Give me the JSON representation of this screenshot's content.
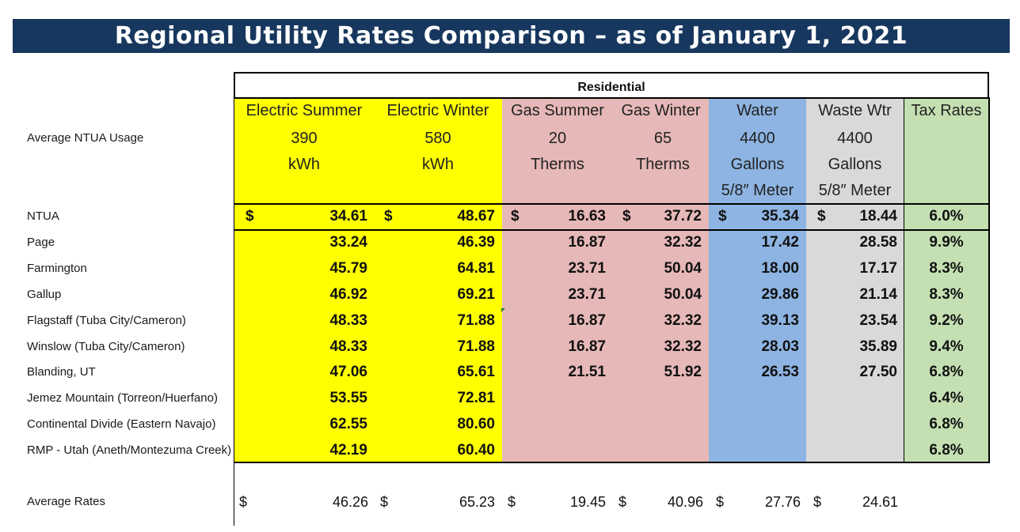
{
  "title": "Regional Utility Rates Comparison – as of January 1, 2021",
  "section": "Residential",
  "colors": {
    "banner": "#17375e",
    "electric": "#ffff00",
    "gas": "#e6b8b7",
    "water": "#8db4e2",
    "waste": "#d9d9d9",
    "tax": "#c4e0b2"
  },
  "columns": [
    {
      "header": "Electric Summer",
      "usage": [
        "390",
        "kWh",
        ""
      ]
    },
    {
      "header": "Electric Winter",
      "usage": [
        "580",
        "kWh",
        ""
      ]
    },
    {
      "header": "Gas Summer",
      "usage": [
        "20",
        "Therms",
        ""
      ]
    },
    {
      "header": "Gas Winter",
      "usage": [
        "65",
        "Therms",
        ""
      ]
    },
    {
      "header": "Water",
      "usage": [
        "4400",
        "Gallons",
        "5/8″ Meter"
      ]
    },
    {
      "header": "Waste Wtr",
      "usage": [
        "4400",
        "Gallons",
        "5/8″ Meter"
      ]
    },
    {
      "header": "Tax Rates",
      "usage": [
        "",
        "",
        ""
      ]
    }
  ],
  "usage_label": "Average NTUA Usage",
  "currency": "$",
  "rows": [
    {
      "name": "NTUA",
      "values": [
        "34.61",
        "48.67",
        "16.63",
        "37.72",
        "35.34",
        "18.44"
      ],
      "tax": "6.0%"
    },
    {
      "name": "Page",
      "values": [
        "33.24",
        "46.39",
        "16.87",
        "32.32",
        "17.42",
        "28.58"
      ],
      "tax": "9.9%"
    },
    {
      "name": "Farmington",
      "values": [
        "45.79",
        "64.81",
        "23.71",
        "50.04",
        "18.00",
        "17.17"
      ],
      "tax": "8.3%"
    },
    {
      "name": "Gallup",
      "values": [
        "46.92",
        "69.21",
        "23.71",
        "50.04",
        "29.86",
        "21.14"
      ],
      "tax": "8.3%"
    },
    {
      "name": "Flagstaff (Tuba City/Cameron)",
      "values": [
        "48.33",
        "71.88",
        "16.87",
        "32.32",
        "39.13",
        "23.54"
      ],
      "tax": "9.2%"
    },
    {
      "name": "Winslow (Tuba City/Cameron)",
      "values": [
        "48.33",
        "71.88",
        "16.87",
        "32.32",
        "28.03",
        "35.89"
      ],
      "tax": "9.4%"
    },
    {
      "name": "Blanding, UT",
      "values": [
        "47.06",
        "65.61",
        "21.51",
        "51.92",
        "26.53",
        "27.50"
      ],
      "tax": "6.8%"
    },
    {
      "name": "Jemez Mountain (Torreon/Huerfano)",
      "values": [
        "53.55",
        "72.81",
        "",
        "",
        "",
        ""
      ],
      "tax": "6.4%"
    },
    {
      "name": "Continental Divide (Eastern Navajo)",
      "values": [
        "62.55",
        "80.60",
        "",
        "",
        "",
        ""
      ],
      "tax": "6.8%"
    },
    {
      "name": "RMP - Utah (Aneth/Montezuma Creek)",
      "values": [
        "42.19",
        "60.40",
        "",
        "",
        "",
        ""
      ],
      "tax": "6.8%"
    }
  ],
  "average": {
    "name": "Average Rates",
    "values": [
      "46.26",
      "65.23",
      "19.45",
      "40.96",
      "27.76",
      "24.61"
    ]
  }
}
